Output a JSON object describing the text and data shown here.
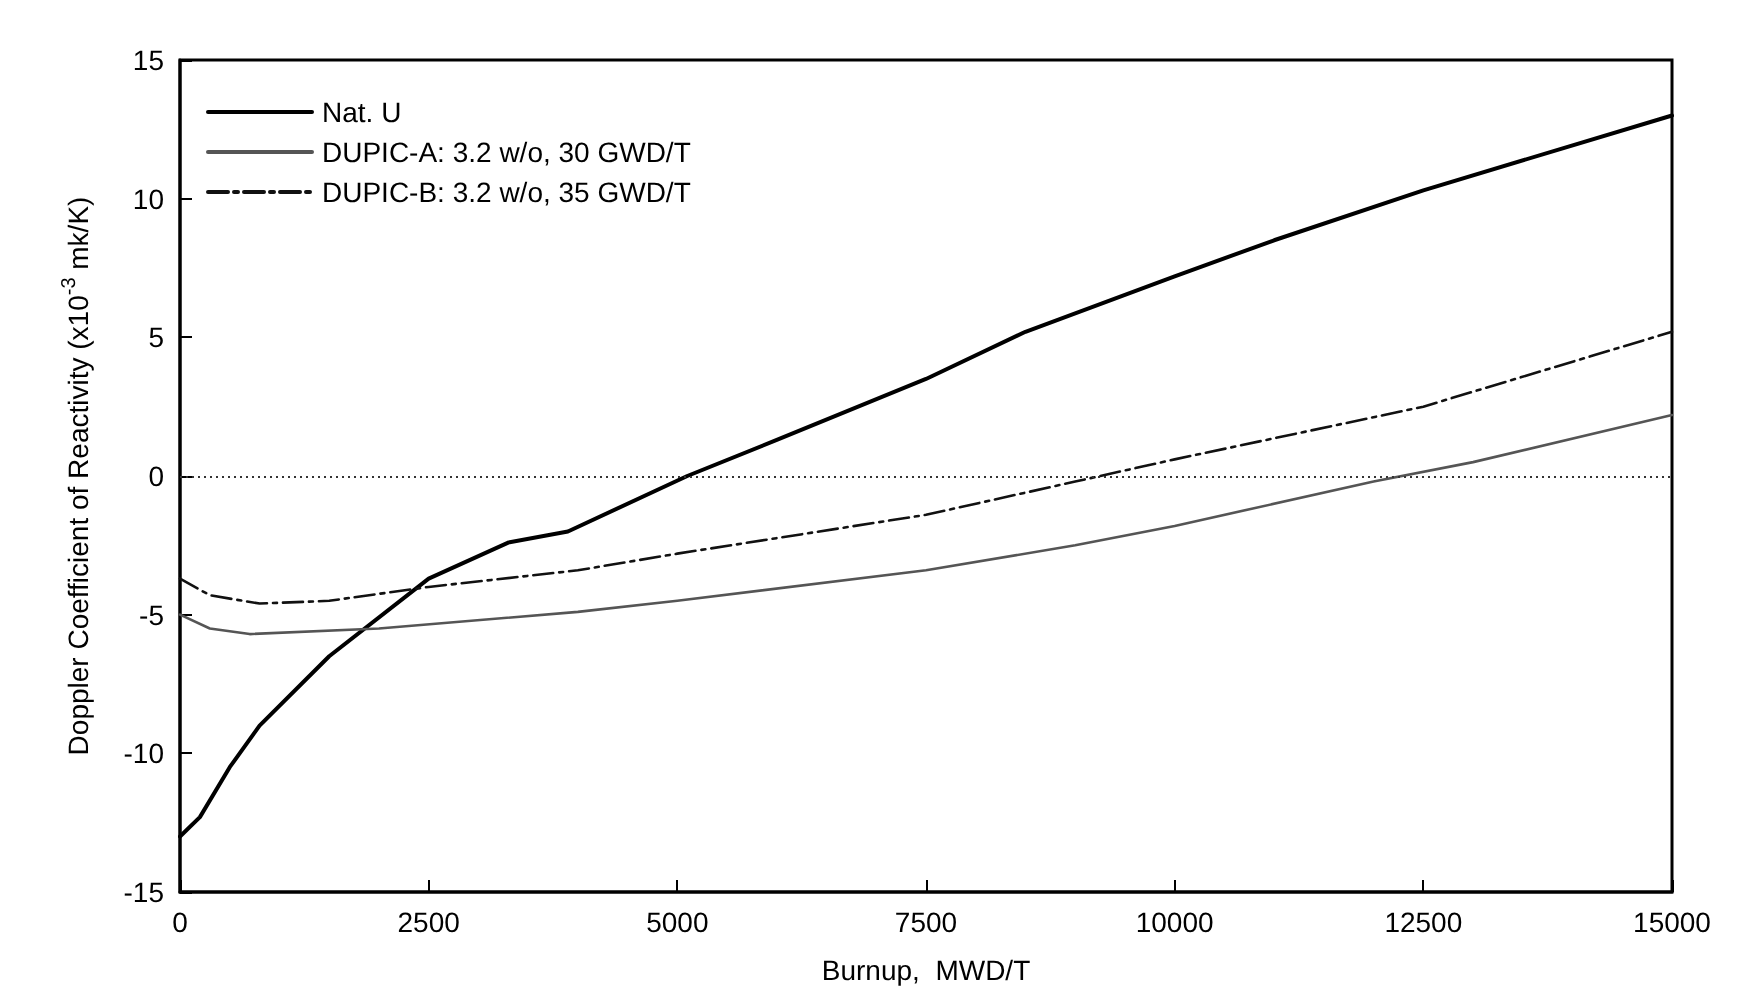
{
  "chart_data": {
    "type": "line",
    "xlabel": "Burnup,  MWD/T",
    "ylabel": "Doppler Coefficient of Reactivity (x10$^{-3}$ mk/K)",
    "xlim": [
      0,
      15000
    ],
    "xticks": [
      0,
      2500,
      5000,
      7500,
      10000,
      12500,
      15000
    ],
    "ylim": [
      -15,
      15
    ],
    "yticks": [
      -15,
      -10,
      -5,
      0,
      5,
      10,
      15
    ],
    "grid": false,
    "legend": "top left",
    "marker": "none",
    "ref_lines": [
      {
        "axis": "y",
        "value": 0,
        "color": "#333333",
        "line_style": "dotted"
      }
    ],
    "series": [
      {
        "name": "Nat. U",
        "color": "#000000",
        "line_style": "solid",
        "x": [
          0,
          200,
          500,
          800,
          1500,
          2500,
          3300,
          3900,
          5100,
          6000,
          7500,
          8500,
          10000,
          11000,
          12500,
          15000
        ],
        "values": [
          -13,
          -12.3,
          -10.5,
          -9,
          -6.5,
          -3.7,
          -2.4,
          -2,
          0,
          1.3,
          3.5,
          5.2,
          7.2,
          8.5,
          10.3,
          13
        ]
      },
      {
        "name": "DUPIC-A: 3.2 w/o, 30 GWD/T",
        "color": "#555555",
        "line_style": "solid",
        "x": [
          0,
          300,
          700,
          2000,
          4000,
          5000,
          7500,
          9000,
          10000,
          12000,
          13000,
          15000
        ],
        "values": [
          -5,
          -5.5,
          -5.7,
          -5.5,
          -4.9,
          -4.5,
          -3.4,
          -2.5,
          -1.8,
          -0.2,
          0.5,
          2.2
        ]
      },
      {
        "name": "DUPIC-B: 3.2 w/o, 35 GWD/T",
        "color": "#111111",
        "line_style": "dashed",
        "x": [
          0,
          300,
          800,
          1500,
          2500,
          4000,
          5000,
          7500,
          9000,
          10000,
          12500,
          15000
        ],
        "values": [
          -3.7,
          -4.3,
          -4.6,
          -4.5,
          -4,
          -3.4,
          -2.8,
          -1.4,
          -0.2,
          0.6,
          2.5,
          5.2
        ]
      }
    ]
  }
}
